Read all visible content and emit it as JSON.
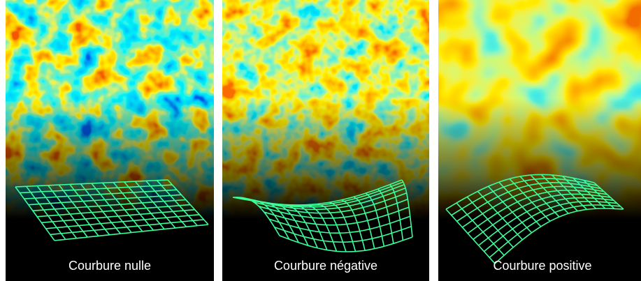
{
  "panels": [
    {
      "label": "Courbure nulle"
    },
    {
      "label": "Courbure négative"
    },
    {
      "label": "Courbure positive"
    }
  ]
}
